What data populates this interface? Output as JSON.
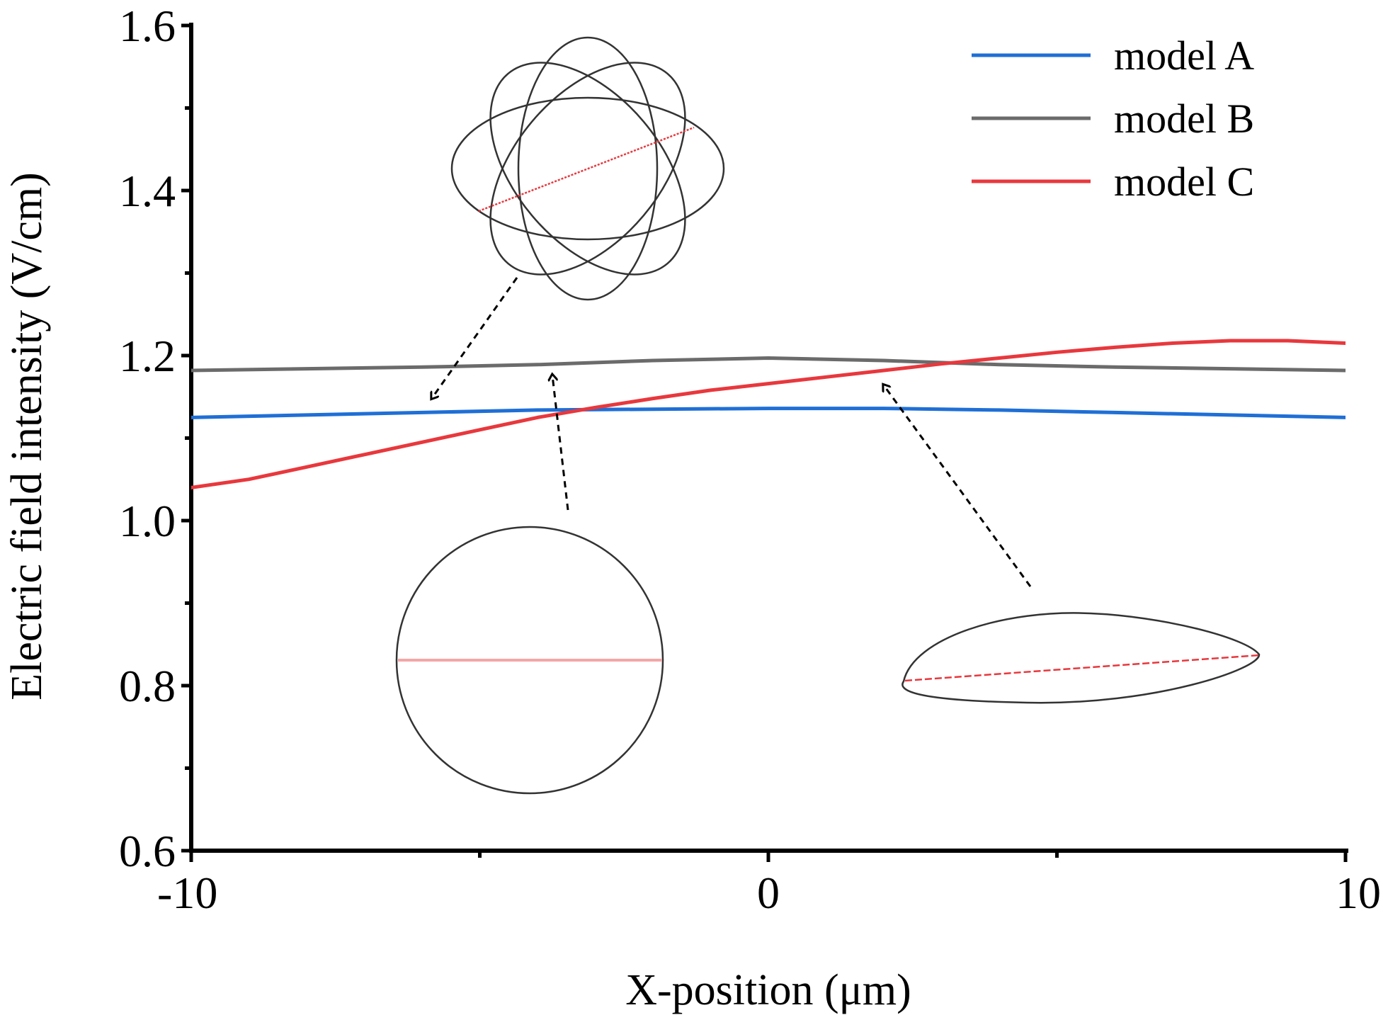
{
  "chart_data": {
    "type": "line",
    "title": "",
    "xlabel": "X-position (μm)",
    "ylabel": "Electric field intensity (V/cm)",
    "xlim": [
      -10,
      10
    ],
    "ylim": [
      0.6,
      1.6
    ],
    "x_ticks": [
      -10,
      0,
      10
    ],
    "x_tick_labels": [
      "-10",
      "0",
      "10"
    ],
    "x_minor_ticks": [
      -5,
      5
    ],
    "y_ticks": [
      0.6,
      0.8,
      1.0,
      1.2,
      1.4,
      1.6
    ],
    "y_tick_labels": [
      "0.6",
      "0.8",
      "1.0",
      "1.2",
      "1.4",
      "1.6"
    ],
    "y_minor_ticks": [
      0.7,
      0.9,
      1.1,
      1.3,
      1.5
    ],
    "grid": false,
    "legend_position": "top-right",
    "series": [
      {
        "name": "model A",
        "color": "#1f6fd6",
        "x": [
          -10,
          -8,
          -6,
          -4,
          -2,
          0,
          2,
          4,
          6,
          8,
          10
        ],
        "y": [
          1.125,
          1.128,
          1.131,
          1.134,
          1.135,
          1.136,
          1.136,
          1.134,
          1.131,
          1.128,
          1.125
        ]
      },
      {
        "name": "model B",
        "color": "#6b6b6b",
        "x": [
          -10,
          -8,
          -6,
          -4,
          -2,
          0,
          2,
          4,
          6,
          8,
          10
        ],
        "y": [
          1.182,
          1.184,
          1.186,
          1.189,
          1.194,
          1.197,
          1.194,
          1.189,
          1.186,
          1.184,
          1.182
        ]
      },
      {
        "name": "model C",
        "color": "#e8383d",
        "x": [
          -10,
          -9,
          -8,
          -7,
          -6,
          -5,
          -4,
          -3,
          -2,
          -1,
          0,
          1,
          2,
          3,
          4,
          5,
          6,
          7,
          8,
          9,
          10
        ],
        "y": [
          1.04,
          1.05,
          1.065,
          1.08,
          1.095,
          1.11,
          1.125,
          1.137,
          1.148,
          1.158,
          1.166,
          1.174,
          1.182,
          1.19,
          1.197,
          1.204,
          1.21,
          1.215,
          1.218,
          1.218,
          1.215
        ]
      }
    ],
    "annotations": [
      {
        "name": "flower-shape",
        "description_shape": "four overlapping ellipses",
        "points_to": {
          "x": -5.8,
          "y": 1.15
        }
      },
      {
        "name": "circle-shape",
        "description_shape": "circle",
        "points_to": {
          "x": -3.6,
          "y": 1.19
        }
      },
      {
        "name": "ellipse-shape",
        "description_shape": "elongated ellipse",
        "points_to": {
          "x": 2.3,
          "y": 1.185
        }
      }
    ]
  }
}
